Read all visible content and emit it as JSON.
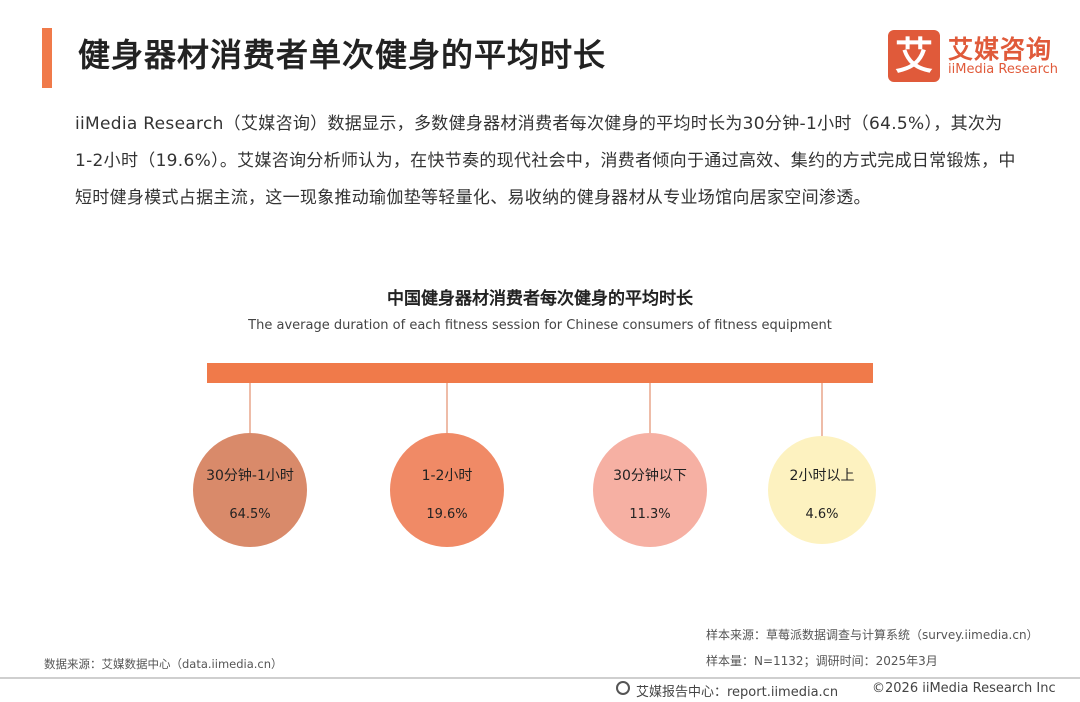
{
  "header": {
    "title": "健身器材消费者单次健身的平均时长",
    "logo_char": "艾",
    "brand_cn": "艾媒咨询",
    "brand_en": "iiMedia Research"
  },
  "intro": {
    "paragraph": "iiMedia Research（艾媒咨询）数据显示，多数健身器材消费者每次健身的平均时长为30分钟-1小时（64.5%），其次为1-2小时（19.6%）。艾媒咨询分析师认为，在快节奏的现代社会中，消费者倾向于通过高效、集约的方式完成日常锻炼，中短时健身模式占据主流，这一现象推动瑜伽垫等轻量化、易收纳的健身器材从专业场馆向居家空间渗透。"
  },
  "chart_data": {
    "type": "bubble",
    "title": "中国健身器材消费者每次健身的平均时长",
    "subtitle": "The average duration of each fitness session for Chinese consumers of fitness equipment",
    "categories": [
      "30分钟-1小时",
      "1-2小时",
      "30分钟以下",
      "2小时以上"
    ],
    "values": [
      64.5,
      19.6,
      11.3,
      4.6
    ],
    "value_labels": [
      "64.5%",
      "19.6%",
      "11.3%",
      "4.6%"
    ],
    "unit": "%",
    "colors": [
      "#d98a6a",
      "#f08a66",
      "#f6b0a3",
      "#fdf2c0"
    ],
    "bar_color": "#f07a4a"
  },
  "sources": {
    "sample_source": "样本来源：草莓派数据调查与计算系统（survey.iimedia.cn）",
    "sample_size": "样本量：N=1132；调研时间：2025年3月",
    "data_source": "数据来源：艾媒数据中心（data.iimedia.cn）"
  },
  "footer": {
    "report_center": "艾媒报告中心：report.iimedia.cn",
    "copyright": "©2026  iiMedia Research  Inc"
  }
}
